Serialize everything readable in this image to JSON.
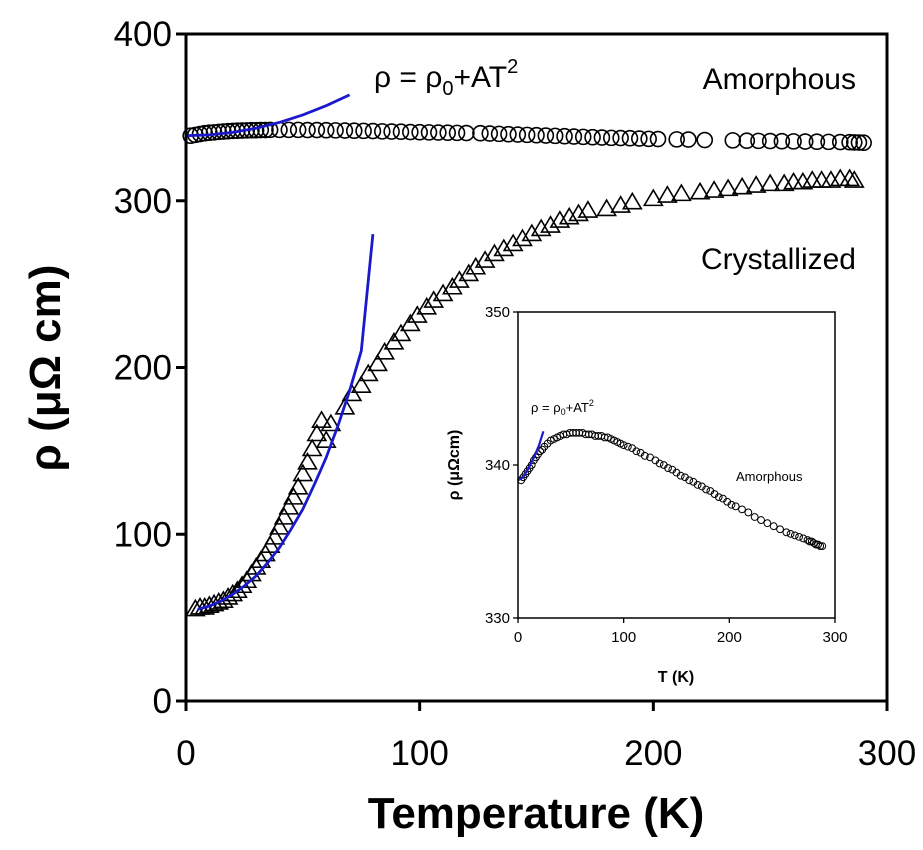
{
  "chart_data": [
    {
      "type": "scatter",
      "xlabel": "Temperature (K)",
      "ylabel": "ρ (μΩ cm)",
      "xlim": [
        0,
        300
      ],
      "ylim": [
        0,
        400
      ],
      "xticks": [
        "0",
        "100",
        "200",
        "300"
      ],
      "yticks": [
        "0",
        "100",
        "200",
        "300",
        "400"
      ],
      "grid": false,
      "annotations": {
        "fit_label": "ρ = ρ0+AT2",
        "series_label_1": "Amorphous",
        "series_label_2": "Crystallized"
      },
      "series": [
        {
          "name": "Amorphous",
          "marker": "circle",
          "x": [
            2,
            4,
            6,
            8,
            10,
            12,
            14,
            16,
            18,
            20,
            22,
            24,
            26,
            28,
            30,
            32,
            34,
            36,
            40,
            44,
            48,
            52,
            56,
            60,
            64,
            68,
            72,
            76,
            80,
            84,
            88,
            92,
            96,
            100,
            104,
            108,
            112,
            116,
            120,
            126,
            130,
            134,
            138,
            142,
            146,
            150,
            154,
            158,
            162,
            166,
            170,
            174,
            178,
            182,
            186,
            190,
            194,
            198,
            202,
            210,
            215,
            222,
            234,
            240,
            245,
            250,
            255,
            260,
            265,
            270,
            275,
            280,
            284,
            286,
            288,
            290
          ],
          "values": [
            339,
            339.5,
            340,
            340.5,
            340.8,
            341,
            341.3,
            341.5,
            341.7,
            341.9,
            342,
            342.1,
            342.2,
            342.3,
            342.3,
            342.4,
            342.4,
            342.5,
            342.5,
            342.5,
            342.5,
            342.4,
            342.4,
            342.3,
            342.2,
            342.1,
            342,
            341.9,
            341.8,
            341.6,
            341.5,
            341.4,
            341.2,
            341.1,
            341,
            340.9,
            340.8,
            340.7,
            340.6,
            340.5,
            340.3,
            340.1,
            339.9,
            339.7,
            339.5,
            339.3,
            339.1,
            338.9,
            338.7,
            338.5,
            338.3,
            338.1,
            337.9,
            337.7,
            337.6,
            337.5,
            337.3,
            337.1,
            337,
            336.8,
            336.7,
            336.4,
            336.2,
            336,
            335.9,
            335.8,
            335.7,
            335.6,
            335.5,
            335.4,
            335.3,
            335.2,
            335.1,
            335,
            334.9,
            334.8
          ]
        },
        {
          "name": "Crystallized",
          "marker": "triangle",
          "x": [
            4,
            6,
            8,
            10,
            12,
            14,
            16,
            18,
            20,
            22,
            24,
            26,
            28,
            30,
            32,
            34,
            36,
            38,
            40,
            42,
            44,
            46,
            48,
            50,
            52,
            54,
            56,
            58,
            60,
            62,
            68,
            71,
            75,
            78,
            82,
            85,
            89,
            92,
            96,
            99,
            103,
            106,
            110,
            114,
            117,
            121,
            124,
            128,
            132,
            136,
            140,
            144,
            148,
            152,
            156,
            160,
            164,
            168,
            172,
            180,
            186,
            191,
            200,
            206,
            212,
            220,
            226,
            232,
            238,
            244,
            250,
            256,
            260,
            264,
            268,
            272,
            276,
            280,
            284,
            286
          ],
          "values": [
            55,
            56,
            56,
            57,
            58,
            59,
            60,
            62,
            64,
            66,
            69,
            72,
            76,
            80,
            84,
            88,
            93,
            98,
            104,
            110,
            116,
            122,
            128,
            136,
            143,
            151,
            160,
            168,
            156,
            166,
            176,
            184,
            189,
            196,
            202,
            209,
            215,
            220,
            226,
            231,
            236,
            240,
            244,
            248,
            252,
            256,
            260,
            264,
            268,
            271,
            274,
            277,
            280,
            283,
            285,
            288,
            290,
            292,
            294,
            295,
            297,
            299,
            301,
            303,
            304,
            305,
            306,
            307,
            308,
            309,
            310,
            310,
            311,
            311,
            312,
            312,
            312,
            313,
            313,
            312
          ]
        },
        {
          "name": "ρ = ρ0+AT2",
          "marker": "line",
          "color": "#1a1acc",
          "x": [
            0,
            10,
            20,
            30,
            40,
            50,
            60,
            70
          ],
          "values": [
            339,
            339.5,
            341,
            343.5,
            347,
            351.5,
            357,
            363.5
          ]
        },
        {
          "name": "ρ = ρ0+AT2",
          "marker": "line",
          "color": "#1a1acc",
          "x": [
            5,
            10,
            15,
            20,
            25,
            30,
            35,
            40,
            45,
            50,
            55,
            60,
            65,
            70,
            75,
            80
          ],
          "values": [
            55,
            57,
            60,
            64,
            69,
            75,
            83,
            92,
            103,
            115,
            130,
            146,
            165,
            186,
            210,
            280
          ]
        }
      ]
    },
    {
      "type": "scatter",
      "xlabel": "T (K)",
      "ylabel": "ρ (μΩcm)",
      "xlim": [
        0,
        300
      ],
      "ylim": [
        330,
        350
      ],
      "xticks": [
        "0",
        "100",
        "200",
        "300"
      ],
      "yticks": [
        "330",
        "340",
        "350"
      ],
      "grid": false,
      "annotations": {
        "fit_label": "ρ = ρ0+AT2",
        "series_label": "Amorphous"
      },
      "series": [
        {
          "name": "Amorphous",
          "marker": "circle",
          "x": [
            3,
            5,
            7,
            9,
            11,
            13,
            15,
            17,
            19,
            21,
            23,
            25,
            28,
            31,
            34,
            37,
            40,
            43,
            46,
            49,
            52,
            55,
            58,
            61,
            64,
            67,
            70,
            73,
            76,
            79,
            82,
            85,
            88,
            91,
            94,
            97,
            100,
            104,
            108,
            112,
            116,
            120,
            125,
            130,
            134,
            138,
            142,
            146,
            150,
            154,
            158,
            162,
            166,
            170,
            174,
            178,
            182,
            186,
            190,
            194,
            198,
            202,
            206,
            212,
            218,
            224,
            230,
            236,
            242,
            248,
            254,
            258,
            262,
            266,
            270,
            274,
            276,
            278,
            280,
            282,
            284,
            286,
            288
          ],
          "values": [
            339.0,
            339.2,
            339.4,
            339.6,
            339.8,
            340.0,
            340.3,
            340.5,
            340.7,
            340.9,
            341.0,
            341.2,
            341.4,
            341.6,
            341.7,
            341.8,
            341.9,
            342.0,
            342.0,
            342.1,
            342.1,
            342.1,
            342.1,
            342.1,
            342.0,
            342.0,
            342.0,
            341.9,
            341.9,
            341.9,
            341.8,
            341.8,
            341.7,
            341.6,
            341.5,
            341.4,
            341.3,
            341.2,
            341.1,
            340.9,
            340.8,
            340.6,
            340.5,
            340.3,
            340.1,
            340.0,
            339.8,
            339.7,
            339.5,
            339.3,
            339.2,
            339.0,
            338.9,
            338.7,
            338.6,
            338.4,
            338.3,
            338.1,
            337.9,
            337.8,
            337.6,
            337.4,
            337.3,
            337.1,
            336.9,
            336.6,
            336.4,
            336.2,
            336.0,
            335.8,
            335.6,
            335.5,
            335.4,
            335.3,
            335.2,
            335.1,
            335.0,
            335.0,
            334.9,
            334.8,
            334.8,
            334.7,
            334.7
          ]
        },
        {
          "name": "ρ = ρ0+AT2",
          "marker": "line",
          "color": "#1a1acc",
          "x": [
            0,
            5,
            10,
            15,
            20,
            24
          ],
          "values": [
            339.0,
            339.2,
            339.8,
            340.5,
            341.3,
            342.2
          ]
        }
      ]
    }
  ]
}
